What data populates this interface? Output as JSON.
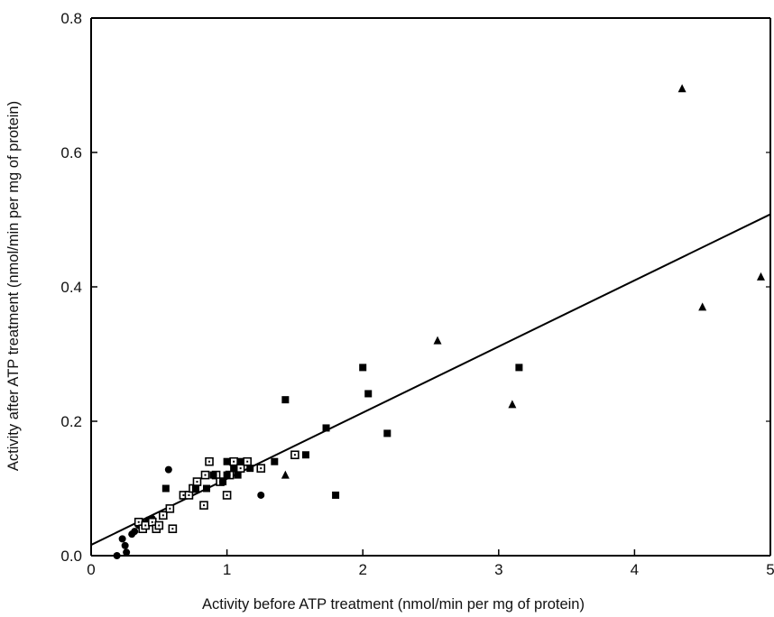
{
  "chart_data": {
    "type": "scatter",
    "title": "",
    "xlabel": "Activity before ATP treatment (nmol/min per mg of protein)",
    "ylabel": "Activity after ATP treatment (nmol/min per mg of protein)",
    "xlim": [
      0,
      5
    ],
    "ylim": [
      0,
      0.8
    ],
    "x_ticks": [
      {
        "value": 0,
        "label": "0"
      },
      {
        "value": 1,
        "label": "1"
      },
      {
        "value": 2,
        "label": "2"
      },
      {
        "value": 3,
        "label": "3"
      },
      {
        "value": 4,
        "label": "4"
      },
      {
        "value": 5,
        "label": "5"
      }
    ],
    "y_ticks": [
      {
        "value": 0,
        "label": "0.0"
      },
      {
        "value": 0.2,
        "label": "0.2"
      },
      {
        "value": 0.4,
        "label": "0.4"
      },
      {
        "value": 0.6,
        "label": "0.6"
      },
      {
        "value": 0.8,
        "label": "0.8"
      }
    ],
    "grid": false,
    "legend": "none",
    "series": [
      {
        "marker": "circle-filled",
        "color": "#000000",
        "points": [
          [
            0.19,
            0.0
          ],
          [
            0.23,
            0.025
          ],
          [
            0.25,
            0.015
          ],
          [
            0.26,
            0.005
          ],
          [
            0.3,
            0.032
          ],
          [
            0.32,
            0.036
          ],
          [
            0.35,
            0.045
          ],
          [
            0.38,
            0.048
          ],
          [
            0.42,
            0.053
          ],
          [
            0.45,
            0.055
          ],
          [
            0.57,
            0.128
          ],
          [
            1.25,
            0.09
          ]
        ]
      },
      {
        "marker": "square-open",
        "color": "#000000",
        "points": [
          [
            0.35,
            0.05
          ],
          [
            0.38,
            0.04
          ],
          [
            0.4,
            0.045
          ],
          [
            0.45,
            0.05
          ],
          [
            0.48,
            0.04
          ],
          [
            0.5,
            0.045
          ],
          [
            0.53,
            0.06
          ],
          [
            0.58,
            0.07
          ],
          [
            0.6,
            0.04
          ],
          [
            0.68,
            0.09
          ],
          [
            0.72,
            0.09
          ],
          [
            0.75,
            0.1
          ],
          [
            0.78,
            0.11
          ],
          [
            0.83,
            0.075
          ],
          [
            0.84,
            0.12
          ],
          [
            0.87,
            0.14
          ],
          [
            0.92,
            0.12
          ],
          [
            0.95,
            0.11
          ],
          [
            1.0,
            0.09
          ],
          [
            1.02,
            0.12
          ],
          [
            1.05,
            0.14
          ],
          [
            1.1,
            0.13
          ],
          [
            1.15,
            0.14
          ],
          [
            1.25,
            0.13
          ],
          [
            1.5,
            0.15
          ]
        ]
      },
      {
        "marker": "square-filled",
        "color": "#000000",
        "points": [
          [
            0.55,
            0.1
          ],
          [
            0.77,
            0.1
          ],
          [
            0.85,
            0.1
          ],
          [
            0.9,
            0.12
          ],
          [
            0.97,
            0.11
          ],
          [
            1.0,
            0.12
          ],
          [
            1.0,
            0.14
          ],
          [
            1.05,
            0.13
          ],
          [
            1.08,
            0.12
          ],
          [
            1.1,
            0.14
          ],
          [
            1.17,
            0.13
          ],
          [
            1.35,
            0.14
          ],
          [
            1.43,
            0.232
          ],
          [
            1.58,
            0.15
          ],
          [
            1.73,
            0.19
          ],
          [
            1.8,
            0.09
          ],
          [
            2.0,
            0.28
          ],
          [
            2.04,
            0.241
          ],
          [
            2.18,
            0.182
          ],
          [
            3.15,
            0.28
          ]
        ]
      },
      {
        "marker": "triangle-filled",
        "color": "#000000",
        "points": [
          [
            1.43,
            0.12
          ],
          [
            2.55,
            0.32
          ],
          [
            3.1,
            0.225
          ],
          [
            4.35,
            0.695
          ],
          [
            4.5,
            0.37
          ],
          [
            4.93,
            0.415
          ]
        ]
      }
    ],
    "fit_line": {
      "x": [
        0,
        5
      ],
      "y": [
        0.016,
        0.508
      ],
      "color": "#000000"
    }
  }
}
